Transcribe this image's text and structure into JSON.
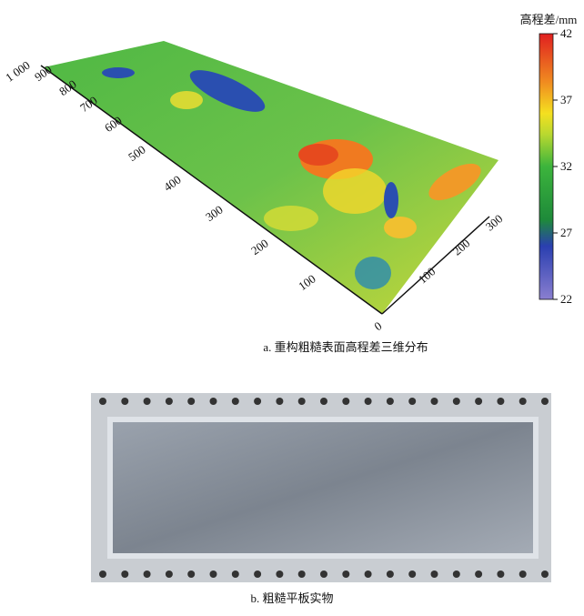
{
  "panel_a": {
    "colorbar_title": "高程差/mm",
    "colorbar_ticks": [
      "42",
      "37",
      "32",
      "27",
      "22"
    ],
    "axis_long_ticks": [
      "0",
      "100",
      "200",
      "300",
      "400",
      "500",
      "600",
      "700",
      "800",
      "900",
      "1 000"
    ],
    "axis_short_ticks": [
      "100",
      "200",
      "300"
    ],
    "caption": "a. 重构粗糙表面高程差三维分布"
  },
  "panel_b": {
    "caption": "b. 粗糙平板实物"
  }
}
